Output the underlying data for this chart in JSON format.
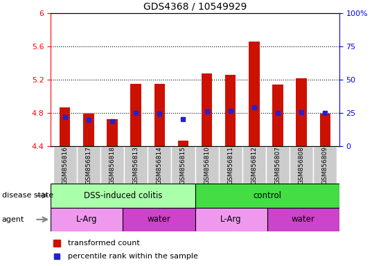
{
  "title": "GDS4368 / 10549929",
  "samples": [
    "GSM856816",
    "GSM856817",
    "GSM856818",
    "GSM856813",
    "GSM856814",
    "GSM856815",
    "GSM856810",
    "GSM856811",
    "GSM856812",
    "GSM856807",
    "GSM856808",
    "GSM856809"
  ],
  "red_values": [
    4.87,
    4.79,
    4.73,
    5.15,
    5.15,
    4.47,
    5.28,
    5.26,
    5.66,
    5.14,
    5.22,
    4.79
  ],
  "blue_values": [
    4.75,
    4.72,
    4.7,
    4.8,
    4.79,
    4.73,
    4.82,
    4.83,
    4.87,
    4.8,
    4.81,
    4.8
  ],
  "ylim_left": [
    4.4,
    6.0
  ],
  "ylim_right": [
    0,
    100
  ],
  "yticks_left": [
    4.4,
    4.8,
    5.2,
    5.6,
    6.0
  ],
  "ytick_labels_left": [
    "4.4",
    "4.8",
    "5.2",
    "5.6",
    "6"
  ],
  "yticks_right": [
    0,
    25,
    50,
    75,
    100
  ],
  "ytick_labels_right": [
    "0",
    "25",
    "50",
    "75",
    "100%"
  ],
  "bar_bottom": 4.4,
  "bar_color": "#CC1100",
  "blue_color": "#2222CC",
  "disease_state_groups": [
    {
      "label": "DSS-induced colitis",
      "start": 0,
      "end": 6,
      "color": "#AAFFAA"
    },
    {
      "label": "control",
      "start": 6,
      "end": 12,
      "color": "#44DD44"
    }
  ],
  "agent_groups": [
    {
      "label": "L-Arg",
      "start": 0,
      "end": 3,
      "color": "#EE99EE"
    },
    {
      "label": "water",
      "start": 3,
      "end": 6,
      "color": "#CC44CC"
    },
    {
      "label": "L-Arg",
      "start": 6,
      "end": 9,
      "color": "#EE99EE"
    },
    {
      "label": "water",
      "start": 9,
      "end": 12,
      "color": "#CC44CC"
    }
  ],
  "disease_label": "disease state",
  "agent_label": "agent",
  "legend_red": "transformed count",
  "legend_blue": "percentile rank within the sample",
  "bar_width": 0.45
}
